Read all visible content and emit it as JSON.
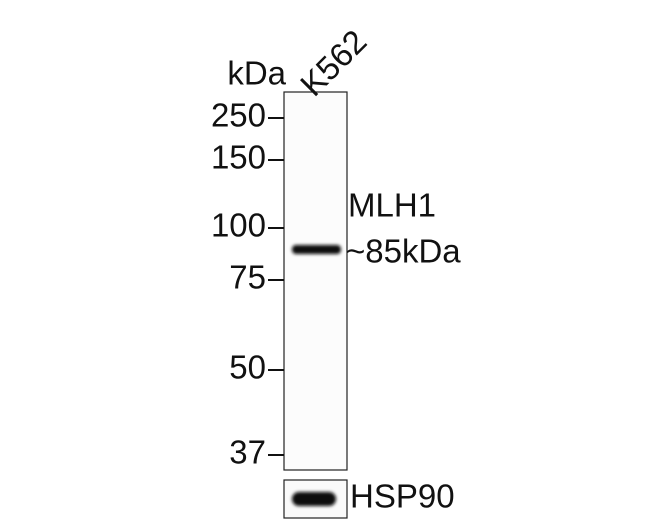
{
  "unit_label": "kDa",
  "lane_label": "K562",
  "markers": [
    "250",
    "150",
    "100",
    "75",
    "50",
    "37"
  ],
  "band": {
    "name": "MLH1",
    "size": "~85kDa"
  },
  "loading_control": "HSP90"
}
